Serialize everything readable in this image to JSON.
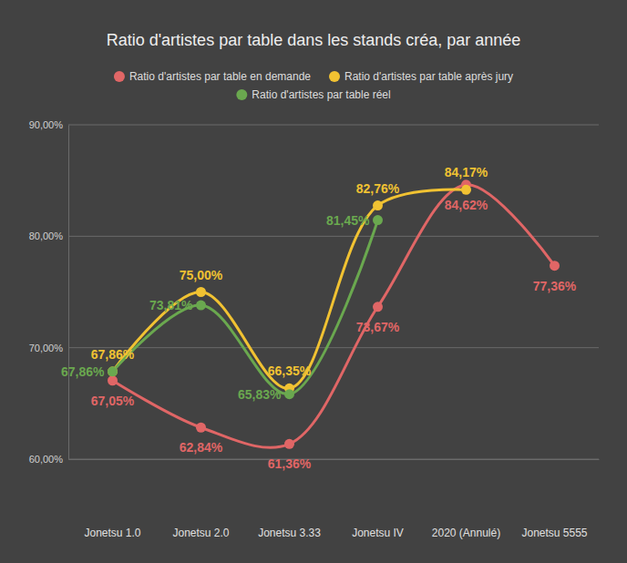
{
  "chart_data": {
    "type": "line",
    "title": "Ratio d'artistes par table dans les stands créa, par année",
    "categories": [
      "Jonetsu 1.0",
      "Jonetsu 2.0",
      "Jonetsu 3.33",
      "Jonetsu IV",
      "2020 (Annulé)",
      "Jonetsu 5555"
    ],
    "series": [
      {
        "name": "Ratio d'artistes par table en demande",
        "color": "#e06666",
        "values": [
          67.05,
          62.84,
          61.36,
          73.67,
          84.62,
          77.36
        ],
        "value_labels": [
          "67,05%",
          "62,84%",
          "61,36%",
          "73,67%",
          "84,62%",
          "77,36%"
        ]
      },
      {
        "name": "Ratio d'artistes par table après jury",
        "color": "#f1c232",
        "values": [
          67.86,
          75.0,
          66.35,
          82.76,
          84.17,
          null
        ],
        "value_labels": [
          "67,86%",
          "75,00%",
          "66,35%",
          "82,76%",
          "84,17%",
          null
        ]
      },
      {
        "name": "Ratio d'artistes par table réel",
        "color": "#6aa84f",
        "values": [
          67.86,
          73.81,
          65.83,
          81.45,
          null,
          null
        ],
        "value_labels": [
          "67,86%",
          "73,81%",
          "65,83%",
          "81,45%",
          null,
          null
        ]
      }
    ],
    "ylim": [
      60,
      90
    ],
    "yticks": [
      {
        "value": 60,
        "label": "60,00%"
      },
      {
        "value": 70,
        "label": "70,00%"
      },
      {
        "value": 80,
        "label": "80,00%"
      },
      {
        "value": 90,
        "label": "90,00%"
      }
    ],
    "grid": true,
    "legend": "top",
    "data_labels": true
  }
}
